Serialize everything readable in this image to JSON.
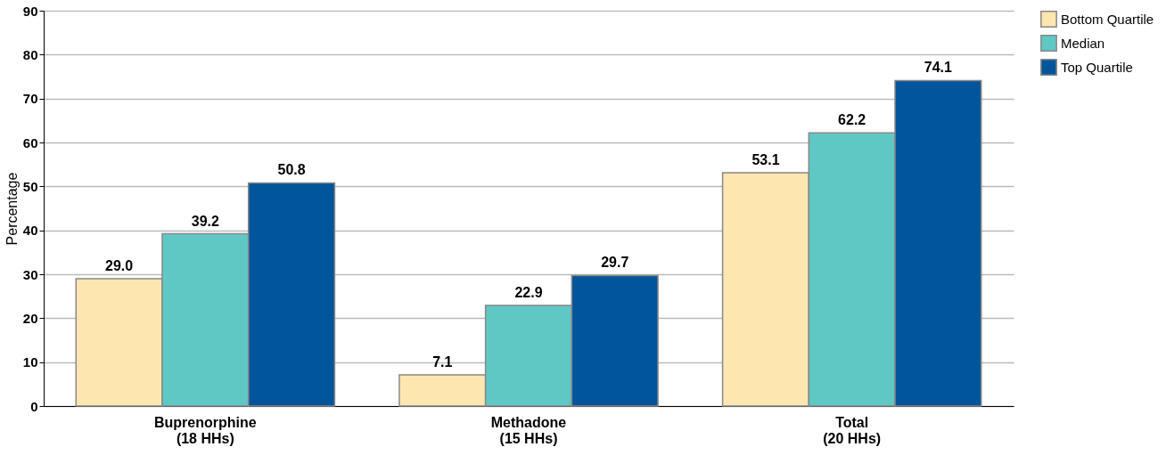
{
  "chart_data": {
    "type": "bar",
    "ylabel": "Percentage",
    "categories": [
      "Buprenorphine\n(18 HHs)",
      "Methadone\n(15 HHs)",
      "Total\n(20 HHs)"
    ],
    "series": [
      {
        "name": "Bottom Quartile",
        "color": "#fde6b0",
        "values": [
          29.0,
          7.1,
          53.1
        ],
        "value_labels": [
          "29.0",
          "7.1",
          "53.1"
        ]
      },
      {
        "name": "Median",
        "color": "#5fc8c4",
        "values": [
          39.2,
          22.9,
          62.2
        ],
        "value_labels": [
          "39.2",
          "22.9",
          "62.2"
        ]
      },
      {
        "name": "Top Quartile",
        "color": "#00559b",
        "values": [
          50.8,
          29.7,
          74.1
        ],
        "value_labels": [
          "50.8",
          "29.7",
          "74.1"
        ]
      }
    ],
    "ylim": [
      0,
      90
    ],
    "yticks": [
      0,
      10,
      20,
      30,
      40,
      50,
      60,
      70,
      80,
      90
    ],
    "grid": "y",
    "legend": "right"
  }
}
